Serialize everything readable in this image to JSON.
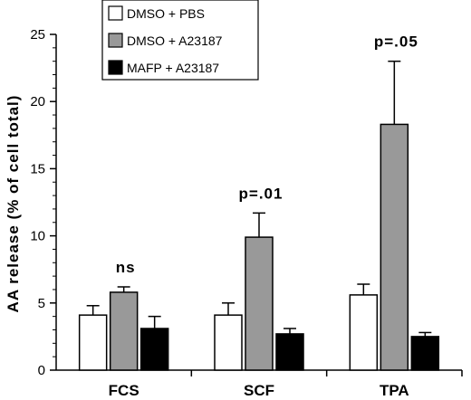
{
  "chart_data": {
    "type": "bar",
    "ylabel": "AA release (% of cell total)",
    "xlabel": "",
    "ylim": [
      0,
      25
    ],
    "yticks": [
      0,
      5,
      10,
      15,
      20,
      25
    ],
    "categories": [
      "FCS",
      "SCF",
      "TPA"
    ],
    "series": [
      {
        "name": "DMSO + PBS",
        "color": "#ffffff",
        "values": [
          4.1,
          4.1,
          5.6
        ],
        "errors": [
          0.7,
          0.9,
          0.8
        ]
      },
      {
        "name": "DMSO + A23187",
        "color": "#999999",
        "values": [
          5.8,
          9.9,
          18.3
        ],
        "errors": [
          0.4,
          1.8,
          4.7
        ]
      },
      {
        "name": "MAFP + A23187",
        "color": "#000000",
        "values": [
          3.1,
          2.7,
          2.5
        ],
        "errors": [
          0.9,
          0.4,
          0.3
        ]
      }
    ],
    "annotations": [
      "ns",
      "p=.01",
      "p=.05"
    ],
    "legend_position": "top-left",
    "grid": false
  }
}
